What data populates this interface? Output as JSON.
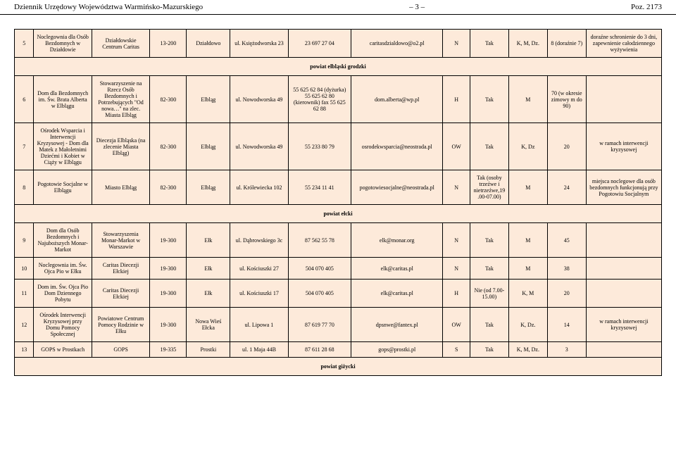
{
  "page": {
    "journal": "Dziennik Urzędowy Województwa Warmińsko-Mazurskiego",
    "pageNum": "– 3 –",
    "ref": "Poz. 2173"
  },
  "colors": {
    "cellBg": "#fdeada",
    "border": "#000000",
    "text": "#000000"
  },
  "rows": [
    {
      "no": "5",
      "name": "Noclegownia dla Osób Bezdomnych w Działdowie",
      "op": "Działdowskie Centrum Caritas",
      "zip": "13-200",
      "city": "Działdowo",
      "addr": "ul. Księżodworska 23",
      "phone": "23 697 27 04",
      "email": "caritasdzialdowo@o2.pl",
      "who": "N",
      "free": "Tak",
      "type": "K, M, Dz.",
      "cap": "8 (doraźnie 7)",
      "notes": "doraźne schronienie do 3 dni, zapewnienie całodziennego wyżywienia"
    }
  ],
  "section1": "powiat elbląski grodzki",
  "rows2": [
    {
      "no": "6",
      "name": "Dom dla Bezdomnych im. Św. Brata Alberta w Elblągu",
      "op": "Stowarzyszenie na Rzecz Osób Bezdomnych i Potrzebujących \"Od nowa…\" na zlec. Miasta Elbląg",
      "zip": "82-300",
      "city": "Elbląg",
      "addr": "ul. Nowodworska 49",
      "phone": "55 625 62 84 (dyżurka) 55 625 62 80 (kierownik) fax 55 625 62 88",
      "email": "dom.alberta@wp.pl",
      "who": "H",
      "free": "Tak",
      "type": "M",
      "cap": "70 (w okresie zimowy m do 90)",
      "notes": ""
    },
    {
      "no": "7",
      "name": "Ośrodek Wsparcia i Interwencji Kryzysowej - Dom dla Matek z Małoletnimi Dziećmi i Kobiet w Ciąży w Elblągu",
      "op": "Diecezja Elbląska (na zlecenie Miasta Elbląg)",
      "zip": "82-300",
      "city": "Elbląg",
      "addr": "ul. Nowodworska 49",
      "phone": "55 233 80 79",
      "email": "osrodekwsparcia@neostrada.pl",
      "who": "OW",
      "free": "Tak",
      "type": "K, Dz",
      "cap": "20",
      "notes": "w ramach interwencji kryzysowej"
    },
    {
      "no": "8",
      "name": "Pogotowie Socjalne w Elblągu",
      "op": "Miasto Elbląg",
      "zip": "82-300",
      "city": "Elbląg",
      "addr": "ul. Królewiecka 102",
      "phone": "55 234 11 41",
      "email": "pogotowiesocjalne@neostrada.pl",
      "who": "N",
      "free": "Tak (osoby trzeźwe i nietrzeźwe,19.00-07.00)",
      "type": "M",
      "cap": "24",
      "notes": "miejsca noclegowe dla osób bezdomnych funkcjonują przy Pogotowiu Socjalnym"
    }
  ],
  "section2": "powiat ełcki",
  "rows3": [
    {
      "no": "9",
      "name": "Dom dla Osób Bezdomnych i Najuboższych Monar-Markot",
      "op": "Stowarzyszenia Monar-Markot w Warszawie",
      "zip": "19-300",
      "city": "Ełk",
      "addr": "ul. Dąbrowskiego 3c",
      "phone": "87 562 55 78",
      "email": "elk@monar.org",
      "who": "N",
      "free": "Tak",
      "type": "M",
      "cap": "45",
      "notes": ""
    },
    {
      "no": "10",
      "name": "Noclegownia im. Św. Ojca Pio w Ełku",
      "op": "Caritas Diecezji Ełckiej",
      "zip": "19-300",
      "city": "Ełk",
      "addr": "ul. Kościuszki 27",
      "phone": "504 070 405",
      "email": "elk@caritas.pl",
      "who": "N",
      "free": "Tak",
      "type": "M",
      "cap": "38",
      "notes": ""
    },
    {
      "no": "11",
      "name": "Dom im. Św. Ojca Pio Dom Dziennego Pobytu",
      "op": "Caritas Diecezji Ełckiej",
      "zip": "19-300",
      "city": "Ełk",
      "addr": "ul. Kościuszki 17",
      "phone": "504 070 405",
      "email": "elk@caritas.pl",
      "who": "H",
      "free": "Nie (od 7.00-15.00)",
      "type": "K, M",
      "cap": "20",
      "notes": ""
    },
    {
      "no": "12",
      "name": "Ośrodek Interwencji Kryzysowej przy Domu Pomocy Społecznej",
      "op": "Powiatowe Centrum Pomocy Rodzinie w Ełku",
      "zip": "19-300",
      "city": "Nowa Wieś Ełcka",
      "addr": "ul. Lipowa 1",
      "phone": "87 619 77 70",
      "email": "dpsnwe@fantex.pl",
      "who": "OW",
      "free": "Tak",
      "type": "K, Dz.",
      "cap": "14",
      "notes": "w ramach interwencji kryzysowej"
    },
    {
      "no": "13",
      "name": "GOPS w Prostkach",
      "op": "GOPS",
      "zip": "19-335",
      "city": "Prostki",
      "addr": "ul. 1 Maja 44B",
      "phone": "87 611 28 68",
      "email": "gops@prostki.pl",
      "who": "S",
      "free": "Tak",
      "type": "K, M, Dz.",
      "cap": "3",
      "notes": ""
    }
  ],
  "section3": "powiat giżycki"
}
